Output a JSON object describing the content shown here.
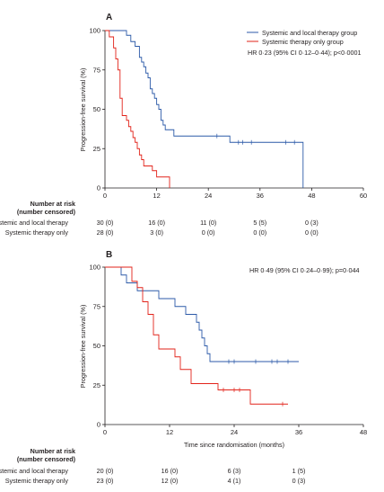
{
  "colors": {
    "systemic_local": "#2c5aa8",
    "systemic_only": "#e2231a",
    "axis": "#231f20"
  },
  "chart_data": [
    {
      "type": "line",
      "panel_label": "A",
      "ylabel": "Progression-free survival (%)",
      "xlabel": "",
      "xlim": [
        0,
        60
      ],
      "ylim": [
        0,
        100
      ],
      "xticks": [
        "0",
        "12",
        "24",
        "36",
        "48",
        "60"
      ],
      "yticks": [
        "0",
        "25",
        "50",
        "75",
        "100"
      ],
      "legend": [
        "Systemic and local therapy group",
        "Systemic therapy only group"
      ],
      "hr_text": "HR 0·23 (95% CI 0·12–0·44); p<0·0001",
      "series": [
        {
          "name": "Systemic and local therapy group",
          "color_key": "systemic_local",
          "steps": [
            [
              0,
              100
            ],
            [
              5,
              97
            ],
            [
              6,
              93
            ],
            [
              7,
              90
            ],
            [
              8,
              83
            ],
            [
              8.5,
              80
            ],
            [
              9,
              77
            ],
            [
              9.5,
              73
            ],
            [
              10,
              70
            ],
            [
              10.5,
              63
            ],
            [
              11,
              60
            ],
            [
              11.5,
              57
            ],
            [
              12,
              53
            ],
            [
              12.5,
              50
            ],
            [
              13,
              43
            ],
            [
              13.5,
              40
            ],
            [
              14,
              37
            ],
            [
              16,
              33
            ],
            [
              29,
              29
            ],
            [
              46,
              0
            ]
          ],
          "end": 46,
          "censored": [
            [
              26,
              33
            ],
            [
              31,
              29
            ],
            [
              32,
              29
            ],
            [
              34,
              29
            ],
            [
              42,
              29
            ],
            [
              44,
              29
            ]
          ]
        },
        {
          "name": "Systemic therapy only group",
          "color_key": "systemic_only",
          "steps": [
            [
              0,
              100
            ],
            [
              1,
              96
            ],
            [
              2,
              89
            ],
            [
              2.5,
              82
            ],
            [
              3,
              75
            ],
            [
              3.5,
              57
            ],
            [
              4,
              46
            ],
            [
              5,
              43
            ],
            [
              5.5,
              39
            ],
            [
              6,
              36
            ],
            [
              6.5,
              32
            ],
            [
              7,
              29
            ],
            [
              7.5,
              25
            ],
            [
              8,
              21
            ],
            [
              8.5,
              18
            ],
            [
              9,
              14
            ],
            [
              11,
              11
            ],
            [
              12,
              7
            ],
            [
              15,
              0
            ]
          ],
          "end": 15,
          "censored": []
        }
      ],
      "risk_table": {
        "title": [
          "Number at risk",
          "(number censored)"
        ],
        "rows": [
          {
            "label": "Systemic and local therapy",
            "values": [
              "30 (0)",
              "16 (0)",
              "11 (0)",
              "5 (5)",
              "0 (3)"
            ]
          },
          {
            "label": "Systemic therapy only",
            "values": [
              "28 (0)",
              "3 (0)",
              "0 (0)",
              "0 (0)",
              "0 (0)"
            ]
          }
        ]
      }
    },
    {
      "type": "line",
      "panel_label": "B",
      "ylabel": "Progression-free survival (%)",
      "xlabel": "Time since randomisation (months)",
      "xlim": [
        0,
        48
      ],
      "ylim": [
        0,
        100
      ],
      "xticks": [
        "0",
        "12",
        "24",
        "36",
        "48"
      ],
      "yticks": [
        "0",
        "25",
        "50",
        "75",
        "100"
      ],
      "legend": [],
      "hr_text": "HR 0·49 (95% CI 0·24–0·99); p=0·044",
      "series": [
        {
          "name": "Systemic and local therapy group",
          "color_key": "systemic_local",
          "steps": [
            [
              0,
              100
            ],
            [
              3,
              95
            ],
            [
              4,
              90
            ],
            [
              6,
              85
            ],
            [
              10,
              80
            ],
            [
              13,
              75
            ],
            [
              15,
              70
            ],
            [
              17,
              65
            ],
            [
              17.5,
              60
            ],
            [
              18,
              55
            ],
            [
              18.5,
              50
            ],
            [
              19,
              45
            ],
            [
              19.5,
              40
            ]
          ],
          "end": 36,
          "censored": [
            [
              23,
              40
            ],
            [
              24,
              40
            ],
            [
              28,
              40
            ],
            [
              31,
              40
            ],
            [
              32,
              40
            ],
            [
              34,
              40
            ]
          ]
        },
        {
          "name": "Systemic therapy only group",
          "color_key": "systemic_only",
          "steps": [
            [
              0,
              100
            ],
            [
              5,
              91
            ],
            [
              6,
              87
            ],
            [
              7,
              78
            ],
            [
              8,
              70
            ],
            [
              9,
              57
            ],
            [
              10,
              48
            ],
            [
              13,
              43
            ],
            [
              14,
              35
            ],
            [
              16,
              26
            ],
            [
              21,
              22
            ],
            [
              27,
              13
            ]
          ],
          "end": 34,
          "censored": [
            [
              22,
              22
            ],
            [
              24,
              22
            ],
            [
              25,
              22
            ],
            [
              33,
              13
            ]
          ]
        }
      ],
      "risk_table": {
        "title": [
          "Number at risk",
          "(number censored)"
        ],
        "rows": [
          {
            "label": "Systemic and local therapy",
            "values": [
              "20 (0)",
              "16 (0)",
              "6 (3)",
              "1 (5)"
            ]
          },
          {
            "label": "Systemic therapy only",
            "values": [
              "23 (0)",
              "12 (0)",
              "4 (1)",
              "0 (3)"
            ]
          }
        ]
      }
    }
  ]
}
